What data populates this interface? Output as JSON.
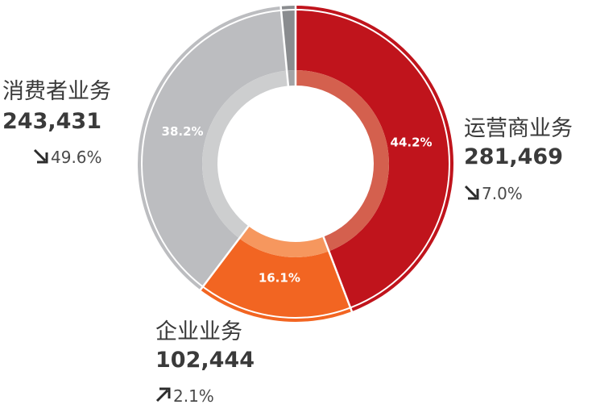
{
  "chart_data": {
    "type": "pie",
    "donut": true,
    "title": "",
    "legend": "none",
    "series": [
      {
        "name": "运营商业务",
        "value": 281469,
        "percent": 44.2,
        "percent_label": "44.2%",
        "value_label": "281,469",
        "change": "7.0%",
        "trend": "down",
        "color": "#c0141c",
        "inner_color": "#d4604e"
      },
      {
        "name": "企业业务",
        "value": 102444,
        "percent": 16.1,
        "percent_label": "16.1%",
        "value_label": "102,444",
        "change": "2.1%",
        "trend": "up",
        "color": "#f26522",
        "inner_color": "#f6975e"
      },
      {
        "name": "消费者业务",
        "value": 243431,
        "percent": 38.2,
        "percent_label": "38.2%",
        "value_label": "243,431",
        "change": "49.6%",
        "trend": "down",
        "color": "#bcbdc0",
        "inner_color": "#cdcecf"
      },
      {
        "name": "",
        "percent": 1.5,
        "color": "#8a8c8f",
        "inner_color": "#a3a4a6"
      }
    ]
  }
}
